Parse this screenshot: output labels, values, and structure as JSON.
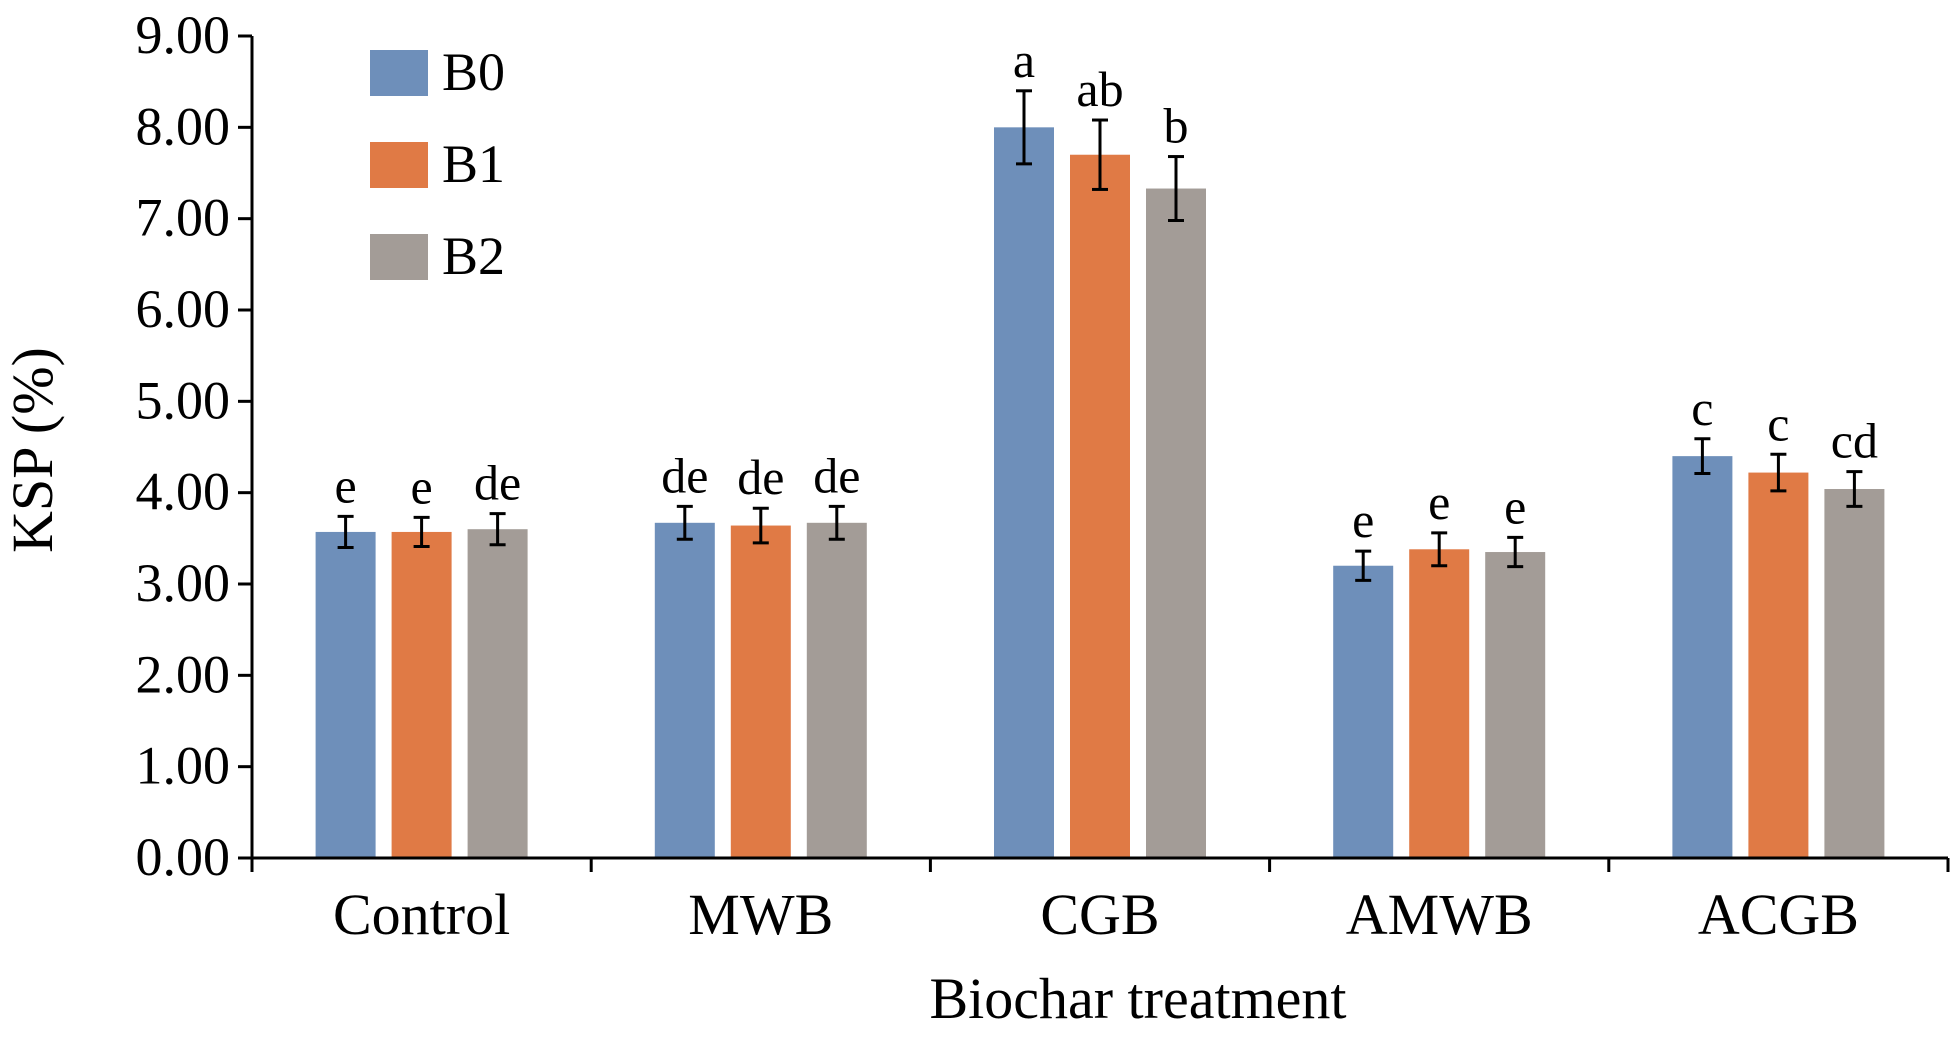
{
  "chart_data": {
    "type": "bar",
    "title": "",
    "xlabel": "Biochar treatment",
    "ylabel": "KSP (%)",
    "ylim": [
      0,
      9
    ],
    "yticks": [
      "0.00",
      "1.00",
      "2.00",
      "3.00",
      "4.00",
      "5.00",
      "6.00",
      "7.00",
      "8.00",
      "9.00"
    ],
    "categories": [
      "Control",
      "MWB",
      "CGB",
      "AMWB",
      "ACGB"
    ],
    "legend_position": "top-left",
    "grid": false,
    "series": [
      {
        "name": "B0",
        "color": "#6e8fba",
        "values": [
          3.57,
          3.67,
          8.0,
          3.2,
          4.4
        ],
        "errors": [
          0.17,
          0.18,
          0.4,
          0.16,
          0.19
        ],
        "labels": [
          "e",
          "de",
          "a",
          "e",
          "c"
        ]
      },
      {
        "name": "B1",
        "color": "#e07a45",
        "values": [
          3.57,
          3.64,
          7.7,
          3.38,
          4.22
        ],
        "errors": [
          0.16,
          0.19,
          0.38,
          0.18,
          0.2
        ],
        "labels": [
          "e",
          "de",
          "ab",
          "e",
          "c"
        ]
      },
      {
        "name": "B2",
        "color": "#a39c97",
        "values": [
          3.6,
          3.67,
          7.33,
          3.35,
          4.04
        ],
        "errors": [
          0.17,
          0.18,
          0.35,
          0.16,
          0.19
        ],
        "labels": [
          "de",
          "de",
          "b",
          "e",
          "cd"
        ]
      }
    ]
  }
}
